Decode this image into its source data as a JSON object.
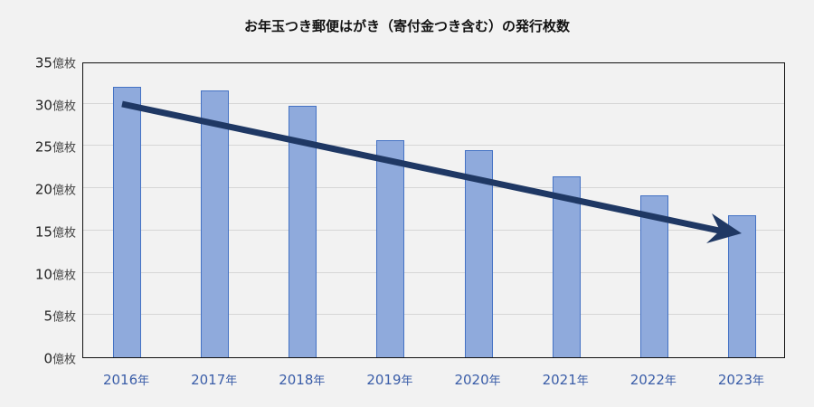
{
  "title": "お年玉つき郵便はがき（寄付金つき含む）の発行枚数",
  "y_unit": "億枚",
  "x_unit": "年",
  "colors": {
    "bar_fill": "#8faadc",
    "bar_border": "#4472c4",
    "arrow": "#1f3864",
    "x_label": "#3a5da8",
    "background": "#f2f2f2"
  },
  "chart_data": {
    "type": "bar",
    "title": "お年玉つき郵便はがき（寄付金つき含む）の発行枚数",
    "xlabel": "",
    "ylabel": "",
    "categories": [
      "2016年",
      "2017年",
      "2018年",
      "2019年",
      "2020年",
      "2021年",
      "2022年",
      "2023年"
    ],
    "values": [
      32.0,
      31.6,
      29.8,
      25.7,
      24.5,
      21.4,
      19.2,
      16.8
    ],
    "unit": "億枚",
    "ylim": [
      0,
      35
    ],
    "yticks": [
      "0億枚",
      "5億枚",
      "10億枚",
      "15億枚",
      "20億枚",
      "25億枚",
      "30億枚",
      "35億枚"
    ],
    "grid": true,
    "legend": "none",
    "annotations": [
      "Downward trend arrow from 2016 to 2023"
    ]
  },
  "yticks": [
    {
      "num": "0",
      "unit": "億枚"
    },
    {
      "num": "5",
      "unit": "億枚"
    },
    {
      "num": "10",
      "unit": "億枚"
    },
    {
      "num": "15",
      "unit": "億枚"
    },
    {
      "num": "20",
      "unit": "億枚"
    },
    {
      "num": "25",
      "unit": "億枚"
    },
    {
      "num": "30",
      "unit": "億枚"
    },
    {
      "num": "35",
      "unit": "億枚"
    }
  ],
  "xticks": [
    {
      "num": "2016",
      "unit": "年"
    },
    {
      "num": "2017",
      "unit": "年"
    },
    {
      "num": "2018",
      "unit": "年"
    },
    {
      "num": "2019",
      "unit": "年"
    },
    {
      "num": "2020",
      "unit": "年"
    },
    {
      "num": "2021",
      "unit": "年"
    },
    {
      "num": "2022",
      "unit": "年"
    },
    {
      "num": "2023",
      "unit": "年"
    }
  ]
}
